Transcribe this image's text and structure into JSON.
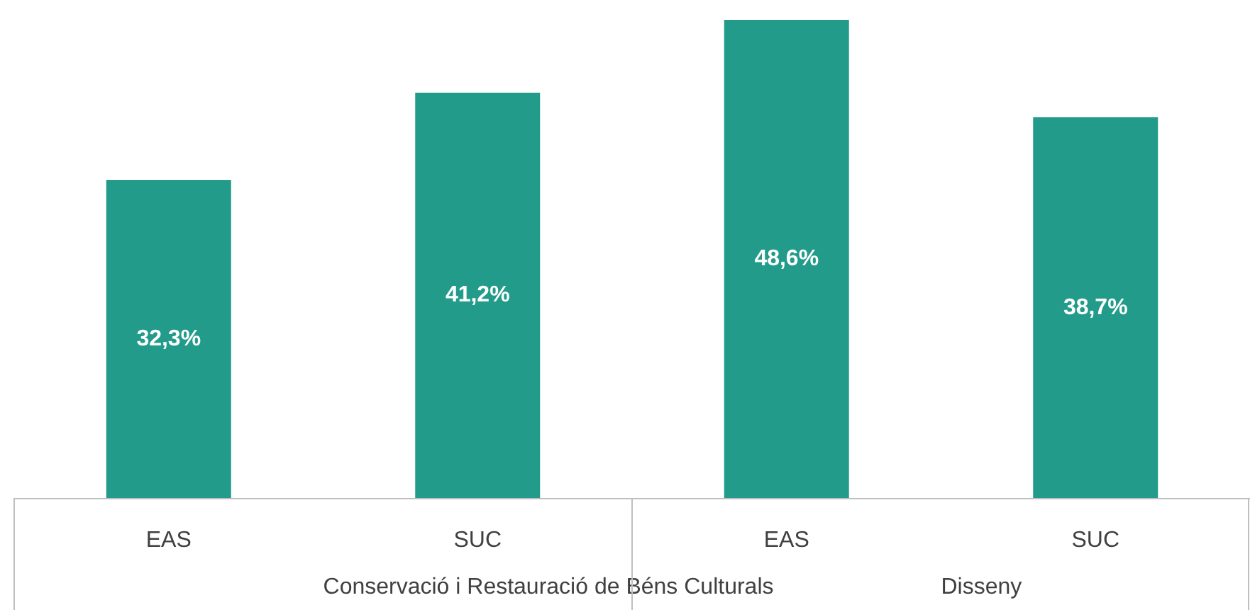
{
  "chart_data": {
    "type": "bar",
    "categories": [
      "EAS",
      "SUC",
      "EAS",
      "SUC"
    ],
    "values": [
      32.3,
      41.2,
      48.6,
      38.7
    ],
    "value_labels": [
      "32,3%",
      "41,2%",
      "48,6%",
      "38,7%"
    ],
    "color": "#239b8a",
    "annotations": [
      "Conservació i Restauració de Béns Culturals",
      "Disseny"
    ]
  }
}
